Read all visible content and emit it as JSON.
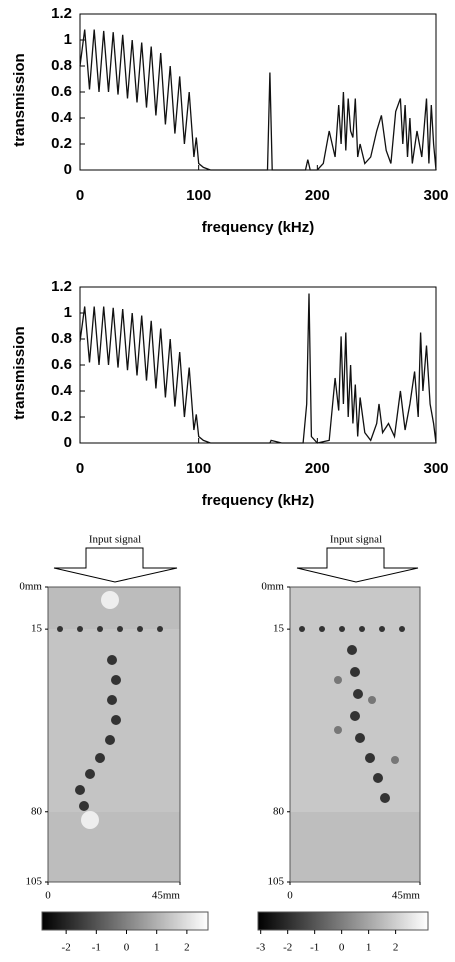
{
  "chart_data": [
    {
      "type": "line",
      "xlabel": "frequency (kHz)",
      "ylabel": "transmission",
      "color": "#111111",
      "xlim": [
        0,
        300
      ],
      "xticks": [
        0,
        100,
        200,
        300
      ],
      "ylim": [
        0,
        1.2
      ],
      "yticks": [
        0,
        0.2,
        0.4,
        0.6,
        0.8,
        1,
        1.2
      ],
      "x": [
        0,
        4,
        8,
        12,
        16,
        20,
        24,
        28,
        32,
        36,
        40,
        44,
        48,
        52,
        56,
        60,
        64,
        68,
        72,
        76,
        80,
        84,
        88,
        92,
        96,
        98,
        100,
        104,
        110,
        150,
        158,
        160,
        162,
        170,
        190,
        192,
        194,
        200,
        205,
        210,
        215,
        218,
        220,
        222,
        224,
        226,
        228,
        230,
        232,
        234,
        236,
        240,
        245,
        250,
        254,
        258,
        262,
        266,
        270,
        272,
        274,
        276,
        278,
        280,
        284,
        288,
        292,
        294,
        296,
        298,
        300
      ],
      "values": [
        0.8,
        1.08,
        0.62,
        1.08,
        0.6,
        1.07,
        0.6,
        1.06,
        0.58,
        1.04,
        0.55,
        1.0,
        0.52,
        0.98,
        0.48,
        0.95,
        0.42,
        0.9,
        0.35,
        0.8,
        0.28,
        0.72,
        0.2,
        0.6,
        0.1,
        0.25,
        0.05,
        0.02,
        0,
        0,
        0,
        0.75,
        0,
        0,
        0,
        0.08,
        0,
        0,
        0.05,
        0.3,
        0.1,
        0.5,
        0.2,
        0.6,
        0.15,
        0.55,
        0.3,
        0.25,
        0.55,
        0.1,
        0.2,
        0.05,
        0.1,
        0.3,
        0.42,
        0.15,
        0.05,
        0.45,
        0.55,
        0.2,
        0.5,
        0.1,
        0.4,
        0.05,
        0.3,
        0.1,
        0.55,
        0.05,
        0.5,
        0.2,
        0
      ]
    },
    {
      "type": "line",
      "xlabel": "frequency (kHz)",
      "ylabel": "transmission",
      "color": "#111111",
      "xlim": [
        0,
        300
      ],
      "xticks": [
        0,
        100,
        200,
        300
      ],
      "ylim": [
        0,
        1.2
      ],
      "yticks": [
        0,
        0.2,
        0.4,
        0.6,
        0.8,
        1,
        1.2
      ],
      "x": [
        0,
        4,
        8,
        12,
        16,
        20,
        24,
        28,
        32,
        36,
        40,
        44,
        48,
        52,
        56,
        60,
        64,
        68,
        72,
        76,
        80,
        84,
        88,
        92,
        96,
        98,
        100,
        104,
        110,
        150,
        160,
        161,
        170,
        188,
        191,
        193,
        195,
        200,
        210,
        215,
        218,
        220,
        222,
        224,
        226,
        228,
        230,
        232,
        234,
        236,
        240,
        245,
        250,
        252,
        255,
        260,
        265,
        270,
        274,
        278,
        282,
        285,
        287,
        289,
        292,
        295,
        298,
        300
      ],
      "values": [
        0.78,
        1.05,
        0.62,
        1.05,
        0.6,
        1.05,
        0.6,
        1.04,
        0.58,
        1.03,
        0.56,
        1.0,
        0.52,
        0.98,
        0.48,
        0.94,
        0.42,
        0.88,
        0.35,
        0.8,
        0.28,
        0.7,
        0.2,
        0.58,
        0.1,
        0.22,
        0.05,
        0.02,
        0,
        0,
        0,
        0.02,
        0,
        0,
        0.3,
        1.15,
        0.05,
        0,
        0.02,
        0.5,
        0.25,
        0.82,
        0.3,
        0.85,
        0.2,
        0.6,
        0.15,
        0.45,
        0.05,
        0.35,
        0.08,
        0.02,
        0.15,
        0.3,
        0.08,
        0.15,
        0.05,
        0.4,
        0.1,
        0.3,
        0.55,
        0.2,
        0.85,
        0.4,
        0.75,
        0.3,
        0.15,
        0
      ]
    }
  ],
  "field_maps": [
    {
      "title": "Input signal",
      "xlim": [
        0,
        45
      ],
      "xticks": [
        0,
        {
          "value": 45,
          "label": "45mm"
        }
      ],
      "ylim": [
        0,
        105
      ],
      "yticks": [
        {
          "value": 0,
          "label": "0mm"
        },
        15,
        80,
        105
      ],
      "colorbar": {
        "lim": [
          -2.8,
          2.7
        ],
        "ticks": [
          -2,
          -1,
          0,
          1,
          2
        ]
      }
    },
    {
      "title": "Input signal",
      "xlim": [
        0,
        45
      ],
      "xticks": [
        0,
        {
          "value": 45,
          "label": "45mm"
        }
      ],
      "ylim": [
        0,
        105
      ],
      "yticks": [
        {
          "value": 0,
          "label": "0mm"
        },
        15,
        80,
        105
      ],
      "colorbar": {
        "lim": [
          -3.1,
          3.2
        ],
        "ticks": [
          -3,
          -2,
          -1,
          0,
          1,
          2
        ]
      }
    }
  ]
}
